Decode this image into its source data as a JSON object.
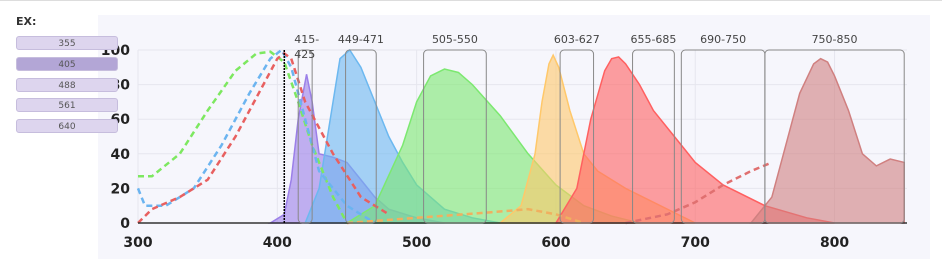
{
  "panel_label": "EX:",
  "ex_buttons": [
    355,
    405,
    488,
    561,
    640
  ],
  "selected": 405,
  "chart_data": {
    "type": "spectrum",
    "xlim": [
      300,
      852
    ],
    "ylim": [
      0,
      100
    ],
    "xticks": [
      300,
      400,
      500,
      600,
      700,
      800
    ],
    "yticks": [
      0,
      20,
      40,
      60,
      80,
      100
    ],
    "grid": true,
    "filters": [
      {
        "label": "415-425",
        "start": 415,
        "end": 425
      },
      {
        "label": "449-471",
        "start": 449,
        "end": 471
      },
      {
        "label": "505-550",
        "start": 505,
        "end": 550
      },
      {
        "label": "603-627",
        "start": 603,
        "end": 627
      },
      {
        "label": "655-685",
        "start": 655,
        "end": 685
      },
      {
        "label": "690-750",
        "start": 690,
        "end": 750
      },
      {
        "label": "750-850",
        "start": 750,
        "end": 850
      }
    ],
    "series": [
      {
        "style": "area",
        "color": "#9b7fe8",
        "x": [
          395,
          405,
          410,
          415,
          421,
          425,
          430,
          440,
          450,
          460,
          470,
          480,
          500,
          520
        ],
        "values": [
          0,
          5,
          25,
          60,
          86,
          70,
          40,
          38,
          35,
          25,
          15,
          8,
          3,
          0
        ]
      },
      {
        "style": "area",
        "color": "#6cb8f0",
        "x": [
          420,
          430,
          440,
          445,
          452,
          460,
          470,
          480,
          490,
          500,
          520,
          540,
          560
        ],
        "values": [
          0,
          20,
          70,
          95,
          100,
          90,
          70,
          50,
          35,
          22,
          8,
          3,
          0
        ]
      },
      {
        "style": "area",
        "color": "#7ce870",
        "x": [
          450,
          470,
          490,
          500,
          510,
          520,
          530,
          540,
          560,
          580,
          600,
          620,
          640,
          660
        ],
        "values": [
          0,
          10,
          45,
          70,
          85,
          89,
          87,
          80,
          62,
          40,
          22,
          10,
          4,
          0
        ]
      },
      {
        "style": "area",
        "color": "#ffc86a",
        "x": [
          560,
          575,
          585,
          590,
          595,
          598,
          602,
          610,
          620,
          630,
          650,
          680,
          700
        ],
        "values": [
          0,
          10,
          40,
          70,
          92,
          97,
          90,
          65,
          40,
          30,
          20,
          8,
          0
        ]
      },
      {
        "style": "area",
        "color": "#ff6060",
        "x": [
          600,
          615,
          625,
          635,
          640,
          645,
          650,
          660,
          670,
          680,
          690,
          700,
          720,
          750,
          780,
          800
        ],
        "values": [
          0,
          20,
          60,
          88,
          95,
          96,
          92,
          80,
          65,
          55,
          45,
          35,
          22,
          10,
          3,
          0
        ]
      },
      {
        "style": "area",
        "color": "#d08080",
        "x": [
          740,
          755,
          765,
          775,
          785,
          790,
          795,
          800,
          810,
          820,
          830,
          840,
          850
        ],
        "values": [
          0,
          15,
          45,
          75,
          92,
          95,
          93,
          85,
          65,
          40,
          33,
          37,
          35
        ]
      },
      {
        "style": "dashed",
        "color": "#7de860",
        "x": [
          300,
          310,
          330,
          350,
          370,
          385,
          395,
          405,
          415,
          425,
          440,
          450
        ],
        "values": [
          27,
          27,
          40,
          65,
          88,
          98,
          99,
          93,
          70,
          45,
          15,
          0
        ]
      },
      {
        "style": "dashed",
        "color": "#6bb4f0",
        "x": [
          300,
          305,
          320,
          340,
          360,
          380,
          395,
          403,
          410,
          420,
          430,
          450,
          470
        ],
        "values": [
          20,
          10,
          10,
          20,
          45,
          75,
          95,
          100,
          90,
          60,
          30,
          10,
          0
        ]
      },
      {
        "style": "dashed",
        "color": "#e86060",
        "x": [
          300,
          310,
          330,
          350,
          370,
          390,
          400,
          405,
          410,
          420,
          440,
          460,
          480
        ],
        "values": [
          0,
          8,
          15,
          25,
          50,
          80,
          95,
          98,
          95,
          70,
          40,
          15,
          5
        ]
      },
      {
        "style": "dashed",
        "color": "#e07070",
        "x": [
          650,
          680,
          700,
          720,
          740,
          755
        ],
        "values": [
          0,
          5,
          12,
          22,
          30,
          35
        ]
      },
      {
        "style": "dashed",
        "color": "#f0b060",
        "x": [
          450,
          500,
          550,
          580,
          600,
          620
        ],
        "values": [
          0,
          3,
          6,
          8,
          5,
          0
        ]
      }
    ]
  }
}
